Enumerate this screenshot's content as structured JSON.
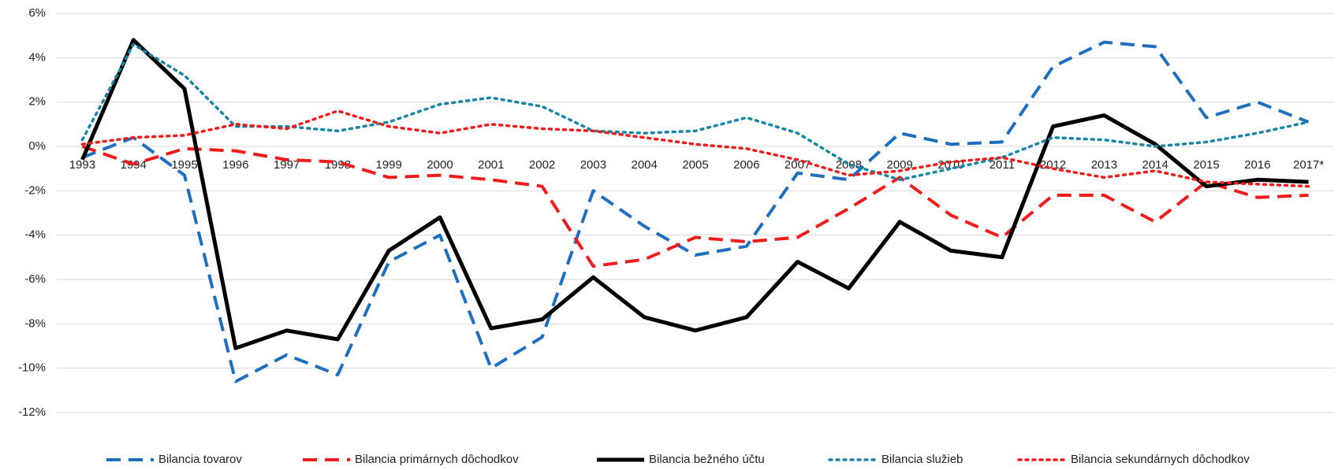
{
  "chart_data": {
    "type": "line",
    "categories": [
      "1993",
      "1994",
      "1995",
      "1996",
      "1997",
      "1998",
      "1999",
      "2000",
      "2001",
      "2002",
      "2003",
      "2004",
      "2005",
      "2006",
      "2007",
      "2008",
      "2009",
      "2010",
      "2011",
      "2012",
      "2013",
      "2014",
      "2015",
      "2016",
      "2017*"
    ],
    "series": [
      {
        "name": "Bilancia tovarov",
        "color": "#1f6fbf",
        "dash": "dashed",
        "values": [
          -0.5,
          0.4,
          -1.3,
          -10.6,
          -9.4,
          -10.3,
          -5.2,
          -4.0,
          -10.0,
          -8.6,
          -2.0,
          -3.6,
          -4.9,
          -4.5,
          -1.2,
          -1.5,
          0.6,
          0.1,
          0.2,
          3.6,
          4.7,
          4.5,
          1.3,
          2.0,
          1.1
        ]
      },
      {
        "name": "Bilancia primárnych dôchodkov",
        "color": "#ee1c1c",
        "dash": "dashed",
        "values": [
          0.0,
          -0.8,
          -0.1,
          -0.2,
          -0.6,
          -0.7,
          -1.4,
          -1.3,
          -1.5,
          -1.8,
          -5.4,
          -5.1,
          -4.1,
          -4.3,
          -4.1,
          -2.8,
          -1.4,
          -3.1,
          -4.1,
          -2.2,
          -2.2,
          -3.4,
          -1.6,
          -2.3,
          -2.2
        ]
      },
      {
        "name": "Bilancia bežného účtu",
        "color": "#000000",
        "dash": "solid",
        "values": [
          -0.6,
          4.8,
          2.6,
          -9.1,
          -8.3,
          -8.7,
          -4.7,
          -3.2,
          -8.2,
          -7.8,
          -5.9,
          -7.7,
          -8.3,
          -7.7,
          -5.2,
          -6.4,
          -3.4,
          -4.7,
          -5.0,
          0.9,
          1.4,
          0.1,
          -1.8,
          -1.5,
          -1.6
        ]
      },
      {
        "name": "Bilancia služieb",
        "color": "#1a86a6",
        "dash": "dotted",
        "values": [
          0.3,
          4.6,
          3.2,
          0.9,
          0.9,
          0.7,
          1.1,
          1.9,
          2.2,
          1.8,
          0.7,
          0.6,
          0.7,
          1.3,
          0.6,
          -0.8,
          -1.5,
          -1.0,
          -0.5,
          0.4,
          0.3,
          0.0,
          0.2,
          0.6,
          1.1
        ]
      },
      {
        "name": "Bilancia sekundárnych dôchodkov",
        "color": "#ee1c1c",
        "dash": "dotted",
        "values": [
          0.1,
          0.4,
          0.5,
          1.0,
          0.8,
          1.6,
          0.9,
          0.6,
          1.0,
          0.8,
          0.7,
          0.4,
          0.1,
          -0.1,
          -0.6,
          -1.3,
          -1.1,
          -0.7,
          -0.5,
          -1.0,
          -1.4,
          -1.1,
          -1.6,
          -1.7,
          -1.8
        ]
      }
    ],
    "ylim": [
      -12,
      6
    ],
    "yticks": [
      {
        "value": -12,
        "label": "-12%"
      },
      {
        "value": -10,
        "label": "-10%"
      },
      {
        "value": -8,
        "label": "-8%"
      },
      {
        "value": -6,
        "label": "-6%"
      },
      {
        "value": -4,
        "label": "-4%"
      },
      {
        "value": -2,
        "label": "-2%"
      },
      {
        "value": 0,
        "label": "0%"
      },
      {
        "value": 2,
        "label": "2%"
      },
      {
        "value": 4,
        "label": "4%"
      },
      {
        "value": 6,
        "label": "6%"
      }
    ],
    "grid": true,
    "legend": "bottom"
  }
}
